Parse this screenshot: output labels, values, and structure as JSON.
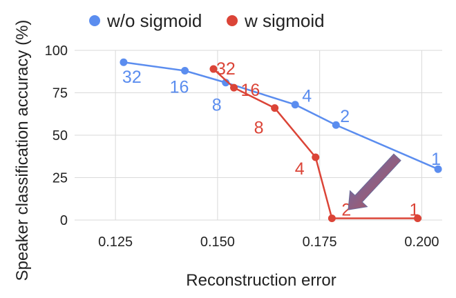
{
  "chart_data": {
    "type": "line",
    "title": "",
    "xlabel": "Reconstruction error",
    "ylabel": "Speaker classification accuracy (%)",
    "xlim": [
      0.115,
      0.205
    ],
    "ylim": [
      0,
      100
    ],
    "xticks": [
      0.125,
      0.15,
      0.175,
      0.2
    ],
    "xtick_labels": [
      "0.125",
      "0.150",
      "0.175",
      "0.200"
    ],
    "yticks": [
      0,
      25,
      50,
      75,
      100
    ],
    "ytick_labels": [
      "0",
      "25",
      "50",
      "75",
      "100"
    ],
    "grid": true,
    "legend_position": "top-left",
    "series": [
      {
        "name": "w/o sigmoid",
        "color": "#5b8def",
        "points": [
          {
            "x": 0.127,
            "y": 93,
            "label": "32"
          },
          {
            "x": 0.142,
            "y": 88,
            "label": "16"
          },
          {
            "x": 0.152,
            "y": 81,
            "label": "8"
          },
          {
            "x": 0.169,
            "y": 68,
            "label": "4"
          },
          {
            "x": 0.179,
            "y": 56,
            "label": "2"
          },
          {
            "x": 0.204,
            "y": 30,
            "label": "1"
          }
        ]
      },
      {
        "name": "w sigmoid",
        "color": "#db4437",
        "points": [
          {
            "x": 0.149,
            "y": 89,
            "label": "32"
          },
          {
            "x": 0.154,
            "y": 78,
            "label": "16"
          },
          {
            "x": 0.164,
            "y": 66,
            "label": "8"
          },
          {
            "x": 0.174,
            "y": 37,
            "label": "4"
          },
          {
            "x": 0.178,
            "y": 1,
            "label": "2"
          },
          {
            "x": 0.199,
            "y": 1,
            "label": "1"
          }
        ]
      }
    ],
    "annotation_arrow": {
      "from": {
        "x": 0.194,
        "y": 37
      },
      "to": {
        "x": 0.182,
        "y": 6
      },
      "color_start": "#5b6fb8",
      "color_end": "#c0504d"
    }
  }
}
